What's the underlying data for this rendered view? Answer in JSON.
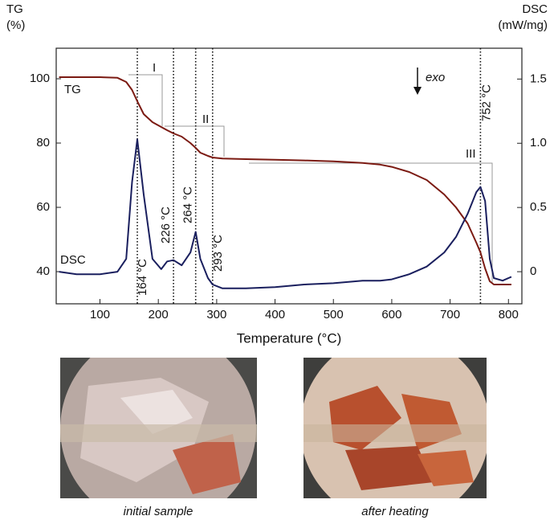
{
  "chart_data": {
    "type": "line",
    "xlabel": "Temperature (°C)",
    "ylabel": [
      "TG",
      "(%)"
    ],
    "y2label": [
      "DSC",
      "(mW/mg)"
    ],
    "xlim": [
      25,
      823
    ],
    "xticks": [
      100,
      200,
      300,
      400,
      500,
      600,
      700,
      800
    ],
    "ylim": [
      30,
      109.5
    ],
    "yticks": [
      40,
      60,
      80,
      100
    ],
    "y2lim": [
      -0.25,
      1.74
    ],
    "y2ticks": [
      0,
      {
        "value": 0.5,
        "label": "0.5"
      },
      {
        "value": 1,
        "label": "1.0"
      },
      {
        "value": 1.5,
        "label": "1.5"
      }
    ],
    "x": [
      30,
      60,
      100,
      130,
      145,
      155,
      164,
      175,
      190,
      205,
      215,
      226,
      240,
      255,
      264,
      272,
      285,
      293,
      310,
      350,
      400,
      450,
      500,
      550,
      580,
      600,
      630,
      660,
      690,
      710,
      730,
      745,
      752,
      760,
      768,
      775,
      790,
      805
    ],
    "series": [
      {
        "name": "TG",
        "color": "#7b1a12",
        "values": [
          100.5,
          100.5,
          100.5,
          100.3,
          99,
          96.5,
          93,
          89,
          86.5,
          85,
          84,
          83,
          82,
          80,
          78.5,
          77,
          76,
          75.5,
          75.2,
          75,
          74.8,
          74.6,
          74.3,
          73.8,
          73.3,
          72.6,
          71,
          68.5,
          64,
          60,
          55,
          49,
          46,
          41,
          37,
          36,
          36,
          36
        ]
      },
      {
        "name": "DSC",
        "color": "#1a1f5e",
        "axis": "y2",
        "values": [
          0,
          -0.02,
          -0.02,
          0,
          0.1,
          0.7,
          1.03,
          0.6,
          0.1,
          0.02,
          0.08,
          0.09,
          0.05,
          0.15,
          0.31,
          0.1,
          -0.05,
          -0.1,
          -0.13,
          -0.13,
          -0.12,
          -0.1,
          -0.09,
          -0.07,
          -0.07,
          -0.06,
          -0.02,
          0.04,
          0.15,
          0.27,
          0.45,
          0.62,
          0.66,
          0.55,
          0.1,
          -0.05,
          -0.07,
          -0.04
        ]
      }
    ],
    "annotations": [
      {
        "value": 164,
        "label": "164 °C"
      },
      {
        "value": 226,
        "label": "226 °C"
      },
      {
        "value": 264,
        "label": "264 °C"
      },
      {
        "value": 293,
        "label": "293 °C"
      },
      {
        "value": 752,
        "label": "752 °C"
      }
    ],
    "steps": [
      "I",
      "II",
      "III"
    ],
    "exo": "exo"
  },
  "photos": [
    {
      "caption": "initial sample"
    },
    {
      "caption": "after heating"
    }
  ]
}
